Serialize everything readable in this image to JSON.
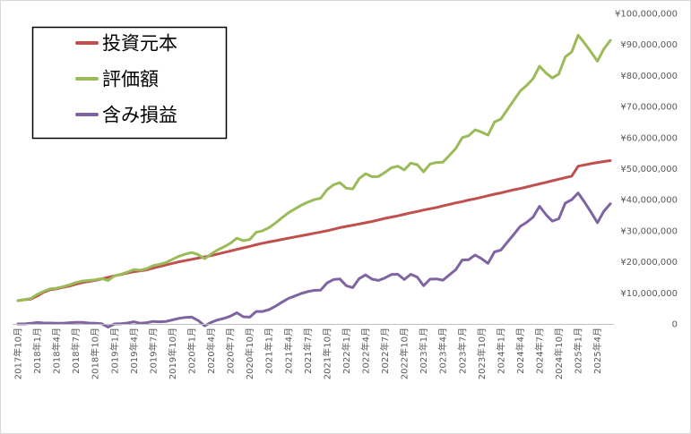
{
  "chart_data": {
    "type": "line",
    "x": [
      "2017年10月",
      "2017年11月",
      "2017年12月",
      "2018年1月",
      "2018年2月",
      "2018年3月",
      "2018年4月",
      "2018年5月",
      "2018年6月",
      "2018年7月",
      "2018年8月",
      "2018年9月",
      "2018年10月",
      "2018年11月",
      "2018年12月",
      "2019年1月",
      "2019年2月",
      "2019年3月",
      "2019年4月",
      "2019年5月",
      "2019年6月",
      "2019年7月",
      "2019年8月",
      "2019年9月",
      "2019年10月",
      "2019年11月",
      "2019年12月",
      "2020年1月",
      "2020年2月",
      "2020年3月",
      "2020年4月",
      "2020年5月",
      "2020年6月",
      "2020年7月",
      "2020年8月",
      "2020年9月",
      "2020年10月",
      "2020年11月",
      "2020年12月",
      "2021年1月",
      "2021年2月",
      "2021年3月",
      "2021年4月",
      "2021年5月",
      "2021年6月",
      "2021年7月",
      "2021年8月",
      "2021年9月",
      "2021年10月",
      "2021年11月",
      "2021年12月",
      "2022年1月",
      "2022年2月",
      "2022年3月",
      "2022年4月",
      "2022年5月",
      "2022年6月",
      "2022年7月",
      "2022年8月",
      "2022年9月",
      "2022年10月",
      "2022年11月",
      "2022年12月",
      "2023年1月",
      "2023年2月",
      "2023年3月",
      "2023年4月",
      "2023年5月",
      "2023年6月",
      "2023年7月",
      "2023年8月",
      "2023年9月",
      "2023年10月",
      "2023年11月",
      "2023年12月",
      "2024年1月",
      "2024年2月",
      "2024年3月",
      "2024年4月",
      "2024年5月",
      "2024年6月",
      "2024年7月",
      "2024年8月",
      "2024年9月",
      "2024年10月",
      "2024年11月",
      "2024年12月",
      "2025年1月",
      "2025年2月",
      "2025年3月",
      "2025年4月",
      "2025年5月",
      "2025年6月"
    ],
    "x_tick_labels": [
      "2017年10月",
      "2018年1月",
      "2018年4月",
      "2018年7月",
      "2018年10月",
      "2019年1月",
      "2019年4月",
      "2019年7月",
      "2019年10月",
      "2020年1月",
      "2020年4月",
      "2020年7月",
      "2020年10月",
      "2021年1月",
      "2021年4月",
      "2021年7月",
      "2021年10月",
      "2022年1月",
      "2022年4月",
      "2022年7月",
      "2022年10月",
      "2023年1月",
      "2023年4月",
      "2023年7月",
      "2023年10月",
      "2024年1月",
      "2024年4月",
      "2024年7月",
      "2024年10月",
      "2025年1月",
      "2025年4月"
    ],
    "y_tick_labels": [
      "0",
      "¥10,000,000",
      "¥20,000,000",
      "¥30,000,000",
      "¥40,000,000",
      "¥50,000,000",
      "¥60,000,000",
      "¥70,000,000",
      "¥80,000,000",
      "¥90,000,000",
      "¥100,000,000"
    ],
    "ylim": [
      0,
      100000000
    ],
    "grid": false,
    "legend_position": "top-left",
    "series": [
      {
        "name": "投資元本",
        "color": "#c0504d",
        "values": [
          7500000,
          7800000,
          8000000,
          9000000,
          10200000,
          11000000,
          11300000,
          11800000,
          12200000,
          12800000,
          13300000,
          13700000,
          14000000,
          14500000,
          15000000,
          15500000,
          15900000,
          16400000,
          16800000,
          17100000,
          17400000,
          18000000,
          18500000,
          19000000,
          19500000,
          20000000,
          20400000,
          20800000,
          21200000,
          21600000,
          22000000,
          22500000,
          23000000,
          23500000,
          24000000,
          24500000,
          25000000,
          25500000,
          26000000,
          26400000,
          26800000,
          27200000,
          27600000,
          28000000,
          28400000,
          28800000,
          29200000,
          29600000,
          30000000,
          30500000,
          31000000,
          31400000,
          31800000,
          32200000,
          32600000,
          33000000,
          33500000,
          34000000,
          34400000,
          34800000,
          35300000,
          35800000,
          36200000,
          36700000,
          37100000,
          37500000,
          38000000,
          38500000,
          39000000,
          39400000,
          39900000,
          40300000,
          40800000,
          41300000,
          41800000,
          42200000,
          42700000,
          43200000,
          43600000,
          44100000,
          44600000,
          45100000,
          45600000,
          46100000,
          46600000,
          47100000,
          47600000,
          50800000,
          51200000,
          51600000,
          52000000,
          52300000,
          52600000
        ]
      },
      {
        "name": "評価額",
        "color": "#9bbb59",
        "values": [
          7500000,
          7800000,
          8200000,
          9500000,
          10500000,
          11300000,
          11500000,
          12000000,
          12600000,
          13300000,
          13800000,
          14000000,
          14200000,
          14600000,
          14000000,
          15500000,
          16000000,
          16700000,
          17500000,
          17300000,
          17800000,
          18800000,
          19200000,
          19800000,
          20800000,
          21800000,
          22500000,
          23000000,
          22300000,
          21000000,
          22500000,
          23800000,
          24800000,
          26000000,
          27600000,
          26800000,
          27200000,
          29500000,
          30000000,
          31000000,
          32500000,
          34200000,
          35800000,
          37000000,
          38200000,
          39200000,
          40000000,
          40500000,
          43200000,
          44800000,
          45500000,
          43700000,
          43500000,
          46800000,
          48400000,
          47400000,
          47500000,
          48800000,
          50300000,
          50800000,
          49600000,
          51800000,
          51300000,
          49000000,
          51500000,
          52000000,
          52100000,
          54300000,
          56500000,
          60000000,
          60600000,
          62500000,
          61800000,
          60800000,
          65000000,
          66000000,
          69000000,
          72000000,
          75000000,
          76800000,
          79000000,
          83000000,
          80800000,
          79200000,
          80500000,
          86000000,
          87600000,
          93000000,
          90400000,
          87600000,
          84600000,
          88600000,
          91300000
        ]
      },
      {
        "name": "含み損益",
        "color": "#8064a2",
        "values": [
          0,
          0,
          200000,
          500000,
          300000,
          300000,
          200000,
          200000,
          400000,
          500000,
          500000,
          300000,
          200000,
          100000,
          -1000000,
          0,
          100000,
          300000,
          700000,
          200000,
          400000,
          800000,
          700000,
          800000,
          1300000,
          1800000,
          2100000,
          2200000,
          1100000,
          -600000,
          500000,
          1300000,
          1800000,
          2500000,
          3600000,
          2300000,
          2200000,
          4000000,
          4000000,
          4600000,
          5700000,
          7000000,
          8200000,
          9000000,
          9800000,
          10400000,
          10800000,
          10900000,
          13200000,
          14300000,
          14500000,
          12300000,
          11700000,
          14600000,
          15800000,
          14400000,
          14000000,
          14800000,
          15900000,
          16000000,
          14300000,
          16000000,
          15100000,
          12300000,
          14400000,
          14500000,
          14100000,
          15800000,
          17500000,
          20600000,
          20700000,
          22200000,
          21000000,
          19500000,
          23200000,
          23800000,
          26300000,
          28800000,
          31400000,
          32700000,
          34400000,
          37900000,
          35200000,
          33100000,
          33900000,
          38900000,
          40000000,
          42200000,
          39200000,
          36000000,
          32600000,
          36300000,
          38700000
        ]
      }
    ]
  }
}
